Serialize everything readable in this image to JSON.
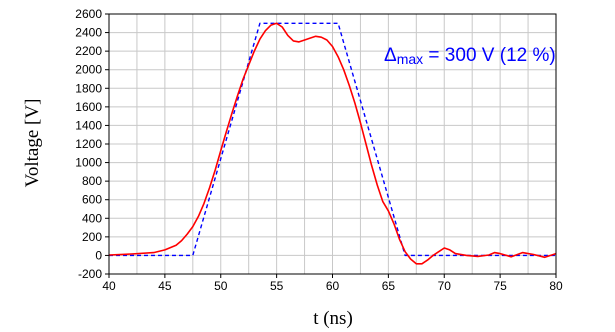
{
  "chart_data": {
    "type": "line",
    "xlabel": "t (ns)",
    "ylabel": "Voltage [V]",
    "xlim": [
      40,
      80
    ],
    "ylim": [
      -200,
      2600
    ],
    "x_ticks": [
      40,
      45,
      50,
      55,
      60,
      65,
      70,
      75,
      80
    ],
    "y_ticks": [
      -200,
      0,
      200,
      400,
      600,
      800,
      1000,
      1200,
      1400,
      1600,
      1800,
      2000,
      2200,
      2400,
      2600
    ],
    "grid": true,
    "annotation": {
      "symbol": "Δ",
      "subscript": "max",
      "text": " = 300 V  (12 %)"
    },
    "series": [
      {
        "style": "dashed",
        "color": "#0000ff",
        "x": [
          40,
          47.5,
          53.5,
          60.5,
          66.5,
          80
        ],
        "y": [
          0,
          0,
          2500,
          2500,
          0,
          0
        ]
      },
      {
        "style": "solid",
        "color": "#ff0000",
        "x": [
          40,
          42,
          44,
          45,
          46,
          46.5,
          47,
          47.5,
          48,
          48.5,
          49,
          49.5,
          50,
          50.5,
          51,
          51.5,
          52,
          52.5,
          53,
          53.5,
          54,
          54.5,
          55,
          55.5,
          56,
          56.5,
          57,
          57.5,
          58,
          58.5,
          59,
          59.5,
          60,
          60.5,
          61,
          61.5,
          62,
          62.5,
          63,
          63.5,
          64,
          64.5,
          65,
          65.5,
          66,
          66.5,
          67,
          67.5,
          68,
          68.5,
          69,
          69.5,
          70,
          70.5,
          71,
          72,
          73,
          74,
          74.5,
          75,
          76,
          77,
          78,
          79,
          80
        ],
        "y": [
          5,
          15,
          30,
          60,
          110,
          160,
          230,
          310,
          420,
          560,
          730,
          920,
          1130,
          1330,
          1530,
          1720,
          1900,
          2050,
          2200,
          2330,
          2420,
          2480,
          2500,
          2460,
          2370,
          2310,
          2300,
          2320,
          2340,
          2360,
          2350,
          2320,
          2250,
          2140,
          2000,
          1830,
          1640,
          1430,
          1200,
          970,
          760,
          580,
          480,
          340,
          170,
          40,
          -40,
          -90,
          -90,
          -50,
          0,
          40,
          80,
          60,
          20,
          0,
          -10,
          5,
          30,
          20,
          -15,
          30,
          10,
          -20,
          20
        ]
      }
    ]
  }
}
